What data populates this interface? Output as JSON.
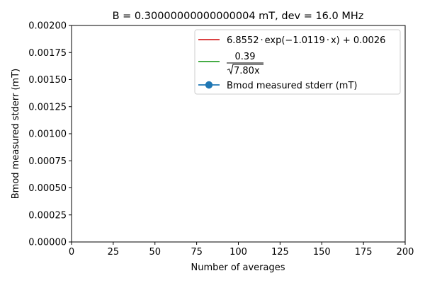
{
  "chart_data": {
    "type": "line",
    "title": "B = 0.30000000000000004 mT, dev = 16.0 MHz",
    "xlabel": "Number of averages",
    "ylabel": "Bmod measured stderr (mT)",
    "xlim": [
      0,
      200
    ],
    "ylim": [
      0,
      0.002
    ],
    "xticks": [
      0,
      25,
      50,
      75,
      100,
      125,
      150,
      175,
      200
    ],
    "xtick_labels": [
      "0",
      "25",
      "50",
      "75",
      "100",
      "125",
      "150",
      "175",
      "200"
    ],
    "yticks": [
      0,
      0.00025,
      0.0005,
      0.00075,
      0.001,
      0.00125,
      0.0015,
      0.00175,
      0.002
    ],
    "ytick_labels": [
      "0.00000",
      "0.00025",
      "0.00050",
      "0.00075",
      "0.00100",
      "0.00125",
      "0.00150",
      "0.00175",
      "0.00200"
    ],
    "grid": false,
    "legend_position": "top-right",
    "series": [
      {
        "name": "6.8552·exp(−1.0119·x) + 0.0026",
        "color": "#d62728",
        "style": "line",
        "values": []
      },
      {
        "name": "0.39 / √(7.80x)",
        "color": "#2ca02c",
        "style": "line",
        "values": []
      },
      {
        "name": "Bmod measured stderr (mT)",
        "color": "#1f77b4",
        "style": "line-marker",
        "values": []
      }
    ],
    "legend": {
      "exp_fit": {
        "coef": "6.8552",
        "dot1": "·",
        "fn": "exp(−1.0119",
        "dot2": "·",
        "tail": "x) + 0.0026"
      },
      "sqrt_fit": {
        "numerator": "0.39",
        "radicand": "7.80x"
      },
      "measured": "Bmod measured stderr (mT)"
    }
  }
}
